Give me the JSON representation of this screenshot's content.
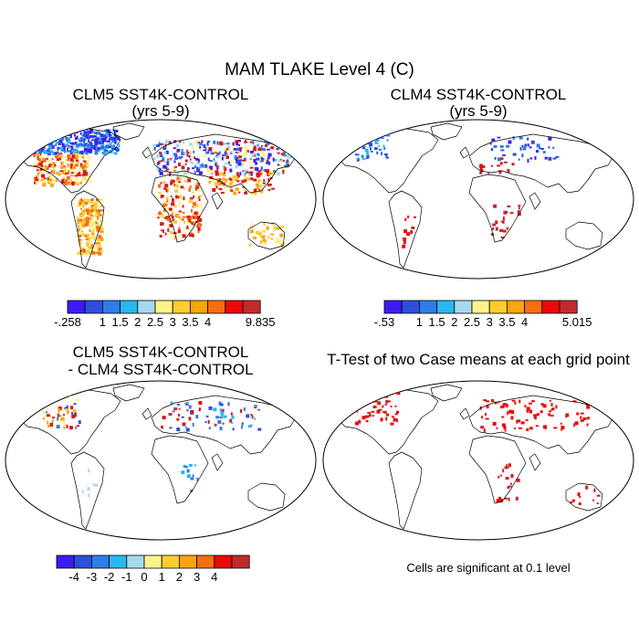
{
  "title": "MAM TLAKE Level 4 (C)",
  "panels": {
    "p1": {
      "title_line1": "CLM5 SST4K-CONTROL",
      "title_line2": "(yrs 5-9)"
    },
    "p2": {
      "title_line1": "CLM4 SST4K-CONTROL",
      "title_line2": "(yrs 5-9)"
    },
    "p3": {
      "title_line1": "CLM5 SST4K-CONTROL",
      "title_line2": "- CLM4 SST4K-CONTROL"
    },
    "p4": {
      "title_line1": "T-Test of two Case means at each grid point"
    }
  },
  "colorbars": {
    "cb1": {
      "colors": [
        "#3c1cf5",
        "#2e4fdc",
        "#2d7ee8",
        "#28b8f0",
        "#a7d9ee",
        "#fff28a",
        "#fdcd30",
        "#f8a60e",
        "#f56e10",
        "#ea0a0a",
        "#c32a2a"
      ],
      "labels": [
        "-.258",
        "1",
        "1.5",
        "2",
        "2.5",
        "3",
        "3.5",
        "4",
        "9.835"
      ],
      "label_after_box": [
        0,
        2,
        3,
        4,
        5,
        6,
        7,
        8,
        11
      ]
    },
    "cb2": {
      "colors": [
        "#3c1cf5",
        "#2e4fdc",
        "#2d7ee8",
        "#28b8f0",
        "#a7d9ee",
        "#fff28a",
        "#fdcd30",
        "#f8a60e",
        "#f56e10",
        "#ea0a0a",
        "#c32a2a"
      ],
      "labels": [
        "-.53",
        "1",
        "1.5",
        "2",
        "2.5",
        "3",
        "3.5",
        "4",
        "5.015"
      ],
      "label_after_box": [
        0,
        2,
        3,
        4,
        5,
        6,
        7,
        8,
        11
      ]
    },
    "cb3": {
      "colors": [
        "#3c1cf5",
        "#2e4fdc",
        "#2d7ee8",
        "#28b8f0",
        "#a7d9ee",
        "#fff28a",
        "#fdcd30",
        "#f8a60e",
        "#f56e10",
        "#ea0a0a",
        "#c32a2a"
      ],
      "labels": [
        "-4",
        "-3",
        "-2",
        "-1",
        "0",
        "1",
        "2",
        "3",
        "4"
      ],
      "label_after_box": [
        1,
        2,
        3,
        4,
        5,
        6,
        7,
        8,
        9
      ]
    }
  },
  "significance_note": "Cells are significant at 0.1 level",
  "chart_data": [
    {
      "type": "heatmap",
      "title": "CLM5 SST4K-CONTROL (yrs 5-9)",
      "variable": "TLAKE Level 4 (C)",
      "season": "MAM",
      "projection": "Robinson",
      "levels": [
        1,
        1.5,
        2,
        2.5,
        3,
        3.5,
        4
      ],
      "data_min": -0.258,
      "data_max": 9.835,
      "colors": [
        "#3c1cf5",
        "#2e4fdc",
        "#2d7ee8",
        "#28b8f0",
        "#a7d9ee",
        "#fff28a",
        "#fdcd30",
        "#f8a60e",
        "#f56e10",
        "#ea0a0a",
        "#c32a2a"
      ]
    },
    {
      "type": "heatmap",
      "title": "CLM4 SST4K-CONTROL (yrs 5-9)",
      "variable": "TLAKE Level 4 (C)",
      "season": "MAM",
      "projection": "Robinson",
      "levels": [
        1,
        1.5,
        2,
        2.5,
        3,
        3.5,
        4
      ],
      "data_min": -0.53,
      "data_max": 5.015,
      "colors": [
        "#3c1cf5",
        "#2e4fdc",
        "#2d7ee8",
        "#28b8f0",
        "#a7d9ee",
        "#fff28a",
        "#fdcd30",
        "#f8a60e",
        "#f56e10",
        "#ea0a0a",
        "#c32a2a"
      ]
    },
    {
      "type": "heatmap",
      "title": "CLM5 SST4K-CONTROL - CLM4 SST4K-CONTROL",
      "projection": "Robinson",
      "levels": [
        -4,
        -3,
        -2,
        -1,
        0,
        1,
        2,
        3,
        4
      ],
      "colors": [
        "#3c1cf5",
        "#2e4fdc",
        "#2d7ee8",
        "#28b8f0",
        "#a7d9ee",
        "#fff28a",
        "#fdcd30",
        "#f8a60e",
        "#f56e10",
        "#ea0a0a",
        "#c32a2a"
      ]
    },
    {
      "type": "heatmap",
      "title": "T-Test of two Case means at each grid point",
      "projection": "Robinson",
      "significance_level": 0.1,
      "note": "Cells are significant at 0.1 level"
    }
  ]
}
